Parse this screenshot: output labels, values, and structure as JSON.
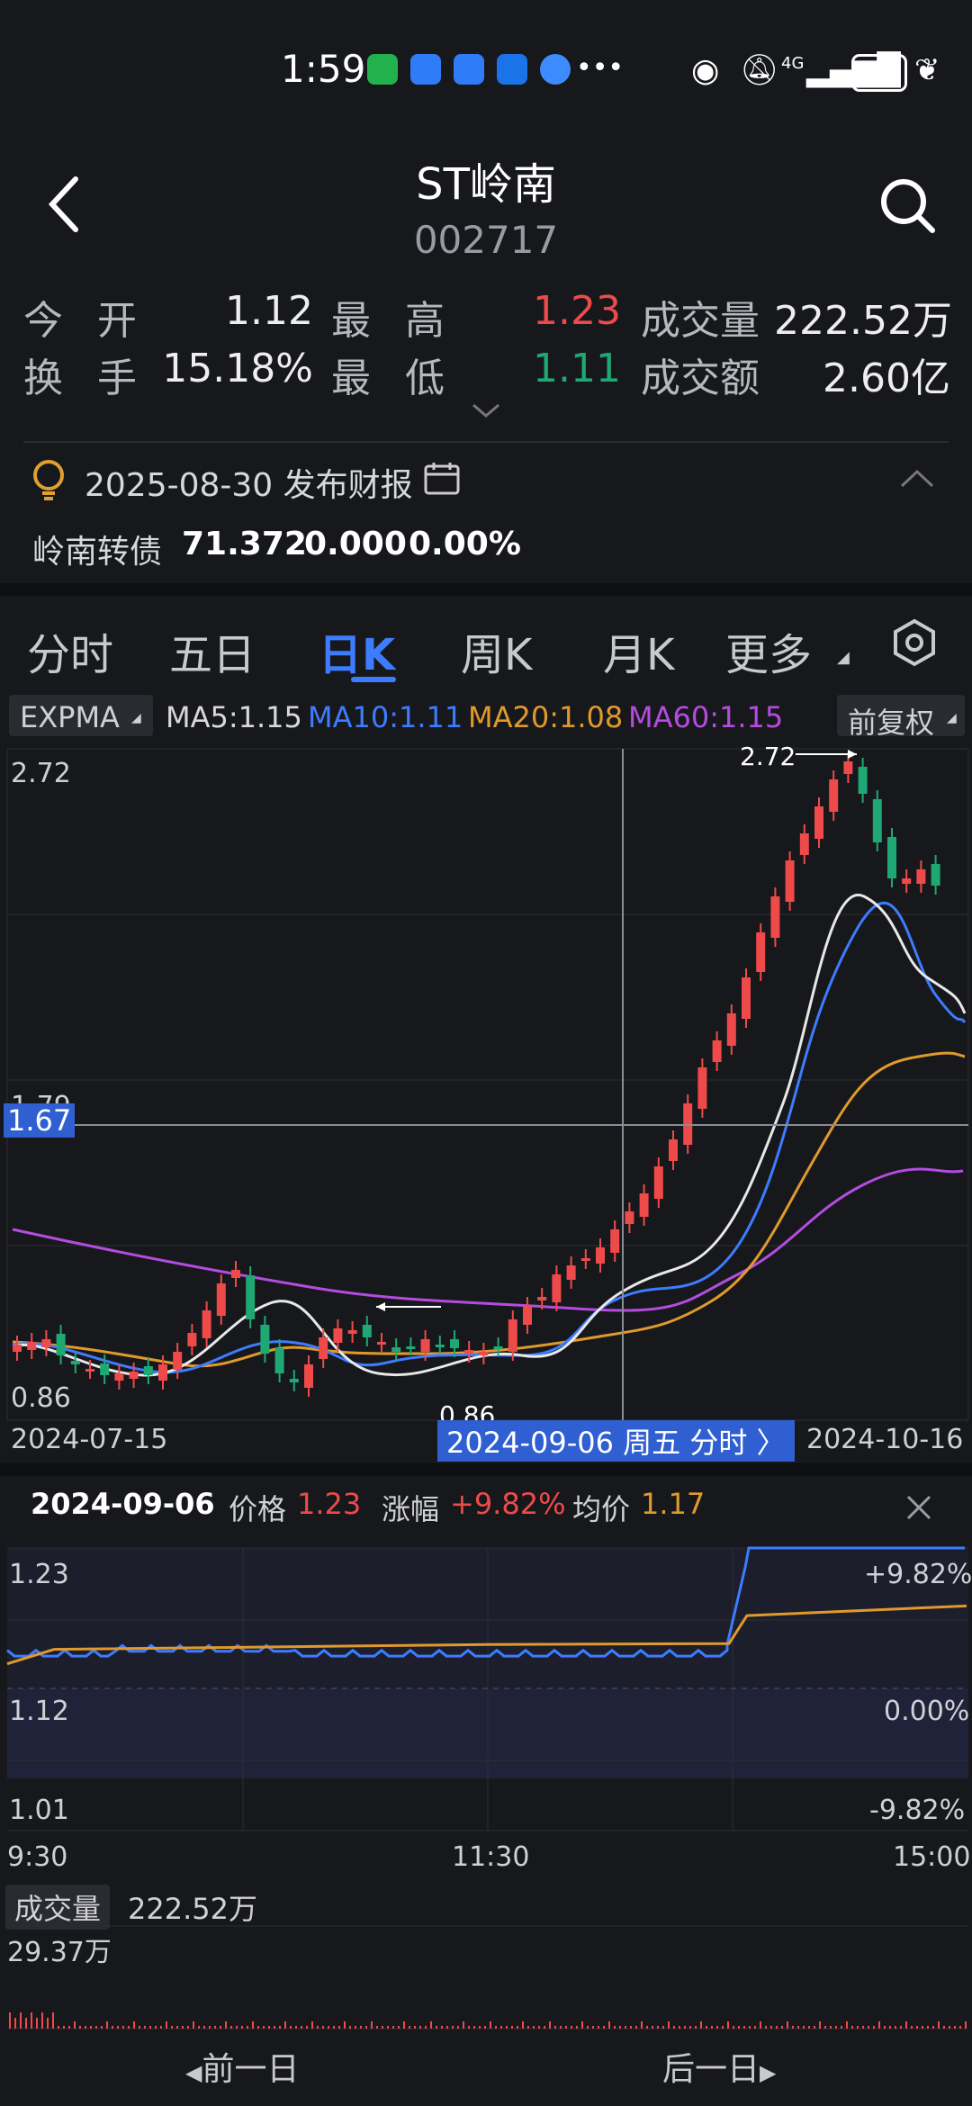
{
  "status_bar": {
    "time": "1:59",
    "signal": "4G",
    "battery": "55"
  },
  "header": {
    "title": "ST岭南",
    "code": "002717"
  },
  "quote": {
    "open_label": "今 开",
    "open": "1.12",
    "high_label": "最 高",
    "high": "1.23",
    "volume_label": "成交量",
    "volume": "222.52万",
    "turnover_label": "换 手",
    "turnover": "15.18%",
    "low_label": "最 低",
    "low": "1.11",
    "amount_label": "成交额",
    "amount": "2.60亿"
  },
  "notice": {
    "text": "2025-08-30 发布财报"
  },
  "bond": {
    "name": "岭南转债",
    "price": "71.372",
    "change": "0.000",
    "pct": "0.00%"
  },
  "tabs": [
    {
      "label": "分时"
    },
    {
      "label": "五日"
    },
    {
      "label": "日K"
    },
    {
      "label": "周K"
    },
    {
      "label": "月K"
    },
    {
      "label": "更多"
    }
  ],
  "indicator": {
    "selector": "EXPMA",
    "ma5": "MA5:1.15",
    "ma10": "MA10:1.11",
    "ma20": "MA20:1.08",
    "ma60": "MA60:1.15",
    "adjust": "前复权"
  },
  "kline": {
    "y_top": "2.72",
    "y_mid": "1.79",
    "y_bottom": "0.86",
    "crosshair_price": "1.67",
    "max_marker": "2.72",
    "min_marker": "0.86",
    "date_start": "2024-07-15",
    "date_end": "2024-10-16",
    "crosshair_date": "2024-09-06 周五 分时 〉"
  },
  "minute": {
    "date": "2024-09-06",
    "price_label": "价格",
    "price": "1.23",
    "change_label": "涨幅",
    "change": "+9.82%",
    "avg_label": "均价",
    "avg": "1.17",
    "y_high": "1.23",
    "y_mid": "1.12",
    "y_low": "1.01",
    "pct_high": "+9.82%",
    "pct_mid": "0.00%",
    "pct_low": "-9.82%",
    "t_start": "9:30",
    "t_mid": "11:30",
    "t_end": "15:00",
    "volume_label": "成交量",
    "volume": "222.52万",
    "vol_axis_max": "29.37万"
  },
  "bottom_nav": {
    "prev": "前一日",
    "next": "后一日"
  },
  "colors": {
    "background": "#17181c",
    "up": "#ef4a4a",
    "down": "#1fa873",
    "ma5": "#e8e8e8",
    "ma10": "#3d7bff",
    "ma20": "#e09a2c",
    "ma60": "#b44ce0",
    "accent": "#3d7bff"
  },
  "chart_data": {
    "type": "line",
    "title": "",
    "x": [
      "9:30",
      "11:30",
      "15:00"
    ],
    "series": [
      {
        "name": "价格",
        "values": [
          1.12,
          1.13,
          1.23
        ]
      },
      {
        "name": "均价",
        "values": [
          1.11,
          1.13,
          1.17
        ]
      }
    ],
    "ylim": [
      1.01,
      1.23
    ]
  }
}
